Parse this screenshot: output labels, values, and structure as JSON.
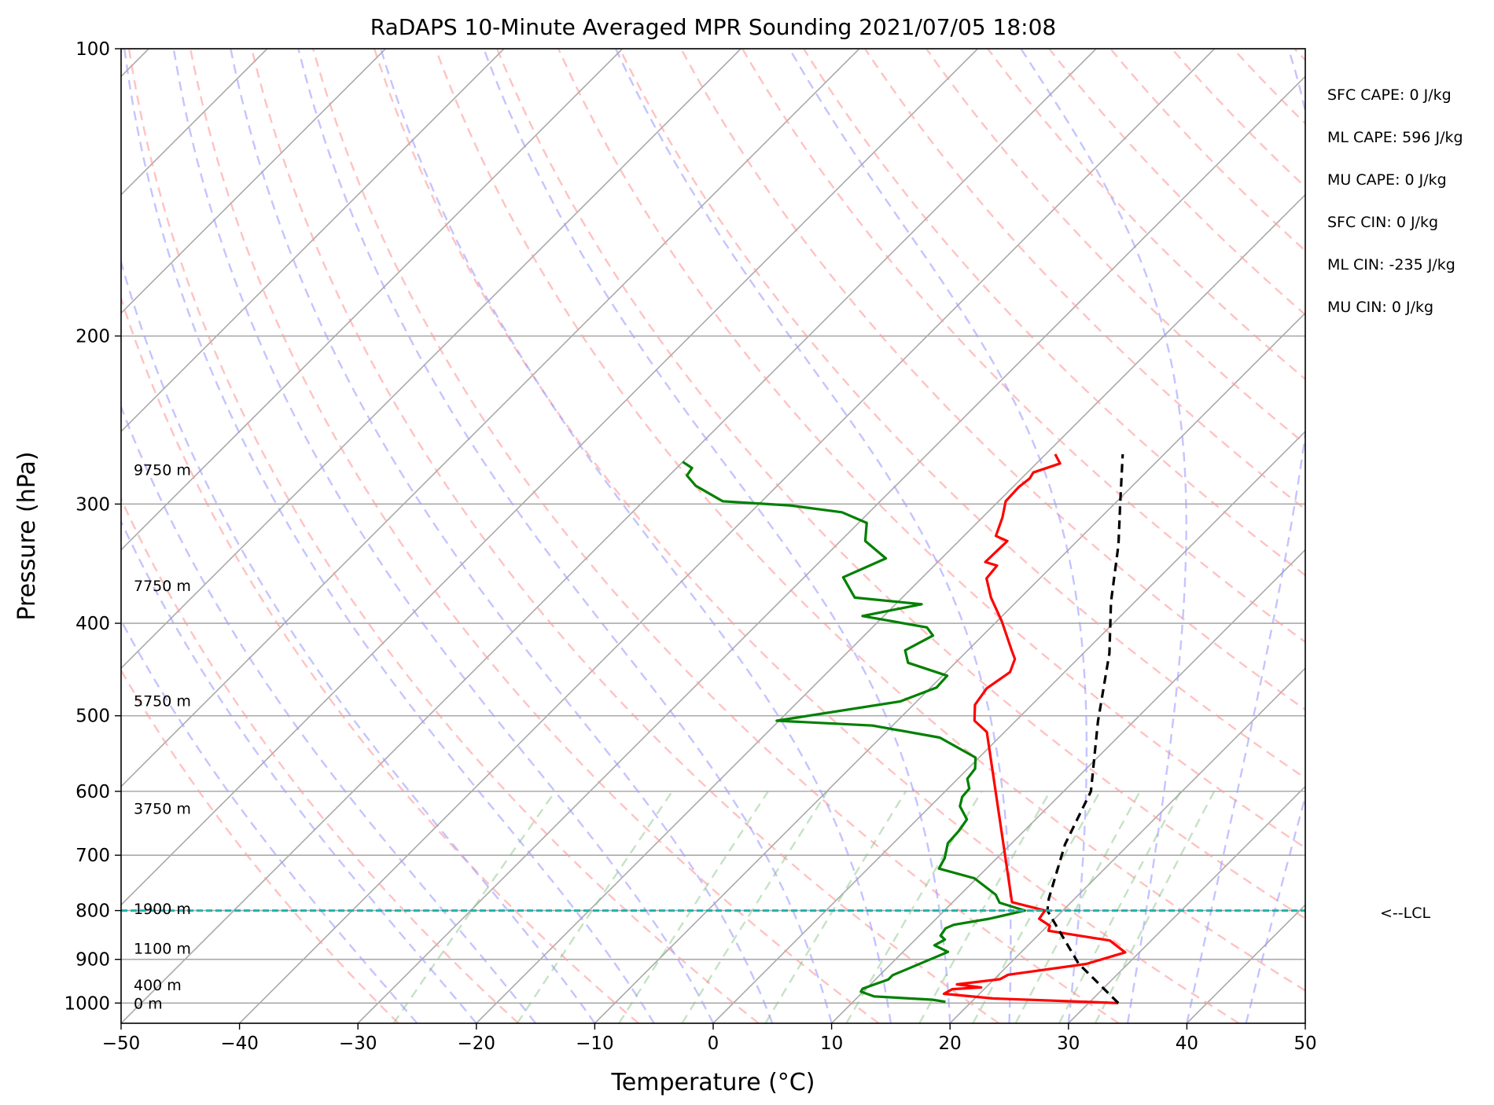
{
  "chart_data": {
    "type": "line",
    "subtype": "skew-t log-p",
    "title": "RaDAPS 10-Minute Averaged MPR Sounding 2021/07/05 18:08",
    "xlabel": "Temperature (°C)",
    "ylabel": "Pressure (hPa)",
    "xlim": [
      -50,
      50
    ],
    "ylim": [
      1050,
      100
    ],
    "y_scale": "log",
    "x_ticks": [
      "−50",
      "−40",
      "−30",
      "−20",
      "−10",
      "0",
      "10",
      "20",
      "30",
      "40",
      "50"
    ],
    "y_ticks": [
      "100",
      "200",
      "300",
      "400",
      "500",
      "600",
      "700",
      "800",
      "900",
      "1000"
    ],
    "grid": true,
    "height_labels": [
      {
        "text": "9750 m",
        "pressure": 276
      },
      {
        "text": "7750 m",
        "pressure": 365
      },
      {
        "text": "5750 m",
        "pressure": 482
      },
      {
        "text": "3750 m",
        "pressure": 625
      },
      {
        "text": "1900 m",
        "pressure": 796
      },
      {
        "text": "1100 m",
        "pressure": 876
      },
      {
        "text": "400 m",
        "pressure": 957
      },
      {
        "text": "0 m",
        "pressure": 1000
      }
    ],
    "series": [
      {
        "color": "#ff0000",
        "x": [
          32.5,
          21.5,
          17.0,
          17.3,
          19.6,
          17.3,
          20.5,
          20.8,
          26.5,
          28.8,
          26.5,
          20.5,
          20.2,
          18.7,
          18.5,
          15.0,
          -1.5,
          -3.5,
          -4.8,
          -5.2,
          -4.6,
          -5.3,
          -6.3,
          -9.6,
          -12.5,
          -14.5,
          -14.7,
          -16.0,
          -15.9,
          -17.3,
          -18.3,
          -19.4,
          -19.5,
          -19.3,
          -19.5,
          -18.0,
          -19.2
        ],
        "y": [
          1000,
          989,
          978,
          967,
          963,
          956,
          944,
          934,
          910,
          885,
          860,
          840,
          830,
          816,
          800,
          784,
          520,
          506,
          487,
          468,
          450,
          436,
          427,
          398,
          376,
          359,
          348,
          345,
          328,
          324,
          310,
          298,
          288,
          282,
          278,
          272,
          266
        ]
      },
      {
        "color": "#008000",
        "x": [
          17.8,
          16.5,
          11.3,
          9.8,
          9.7,
          10.4,
          11.1,
          11.1,
          12.3,
          13.8,
          12.1,
          12.5,
          11.8,
          11.6,
          12.0,
          14.5,
          16.8,
          14.0,
          13.0,
          9.8,
          6.0,
          5.6,
          4.6,
          4.5,
          4.2,
          2.5,
          1.9,
          1.8,
          0.8,
          0.6,
          -0.3,
          -5.0,
          -11.7,
          -20.2,
          -11.4,
          -9.5,
          -9.6,
          -14.0,
          -15.3,
          -14.2,
          -15.4,
          -21.8,
          -17.8,
          -24.0,
          -26.7,
          -24.7,
          -27.9,
          -29.3,
          -32.3,
          -37.3,
          -43.3,
          -46.9,
          -48.5,
          -48.7,
          -50
        ],
        "y": [
          997,
          992,
          984,
          973,
          966,
          955,
          945,
          935,
          912,
          884,
          870,
          858,
          850,
          835,
          828,
          816,
          800,
          785,
          770,
          740,
          723,
          705,
          680,
          660,
          642,
          622,
          608,
          596,
          582,
          568,
          553,
          527,
          512,
          506,
          483,
          467,
          454,
          440,
          427,
          412,
          404,
          393,
          382,
          376,
          358,
          342,
          328,
          314,
          306,
          301,
          298,
          287,
          280,
          275,
          271
        ]
      },
      {
        "color": "#000000",
        "style": "dashed",
        "x": [
          32.5,
          25.8,
          18.7,
          17.8,
          14.6,
          12.3,
          7.0,
          2.2,
          -2.0,
          -6.2,
          -9.5,
          -13.5
        ],
        "y": [
          1000,
          909,
          800,
          777,
          682,
          600,
          507,
          430,
          380,
          331,
          300,
          266
        ]
      }
    ],
    "lcl": {
      "label": "<--LCL",
      "pressure": 800,
      "color": "#20b2aa"
    },
    "indices": [
      "SFC CAPE: 0 J/kg",
      "ML CAPE: 596 J/kg",
      "MU CAPE: 0 J/kg",
      "SFC CIN: 0 J/kg",
      "ML CIN: -235 J/kg",
      "MU CIN: 0 J/kg"
    ]
  }
}
